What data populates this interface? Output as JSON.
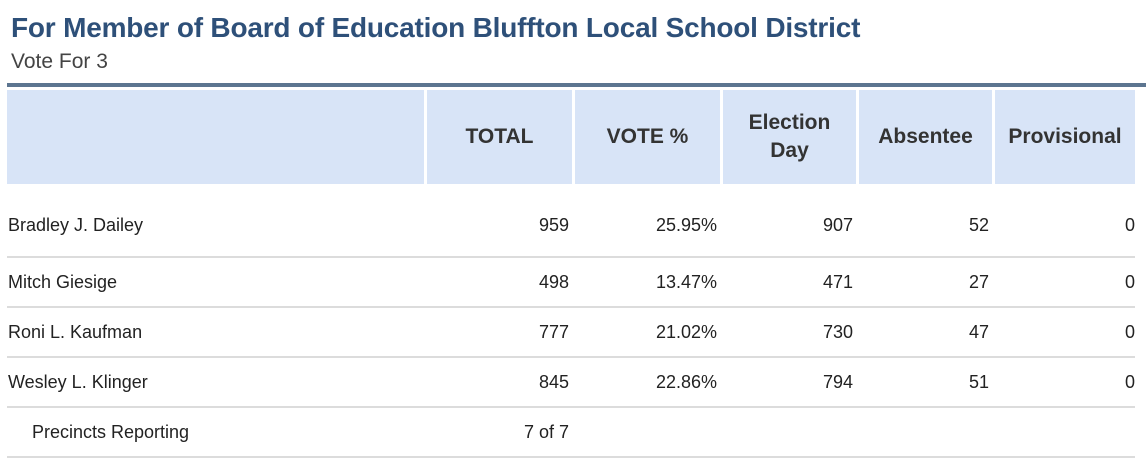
{
  "header": {
    "title": "For Member of Board of Education Bluffton Local School District",
    "subtitle": "Vote For 3"
  },
  "table": {
    "columns": [
      "",
      "TOTAL",
      "VOTE %",
      "Election Day",
      "Absentee",
      "Provisional"
    ],
    "rows": [
      {
        "name": "Bradley J. Dailey",
        "total": "959",
        "vote_pct": "25.95%",
        "election_day": "907",
        "absentee": "52",
        "provisional": "0"
      },
      {
        "name": "Mitch Giesige",
        "total": "498",
        "vote_pct": "13.47%",
        "election_day": "471",
        "absentee": "27",
        "provisional": "0"
      },
      {
        "name": "Roni L. Kaufman",
        "total": "777",
        "vote_pct": "21.02%",
        "election_day": "730",
        "absentee": "47",
        "provisional": "0"
      },
      {
        "name": "Wesley L. Klinger",
        "total": "845",
        "vote_pct": "22.86%",
        "election_day": "794",
        "absentee": "51",
        "provisional": "0"
      }
    ],
    "precincts": {
      "label": "Precincts Reporting",
      "value": "7 of 7"
    }
  },
  "colors": {
    "title": "#2e5079",
    "header_bg": "#d8e4f7",
    "rule": "#5c7590"
  }
}
